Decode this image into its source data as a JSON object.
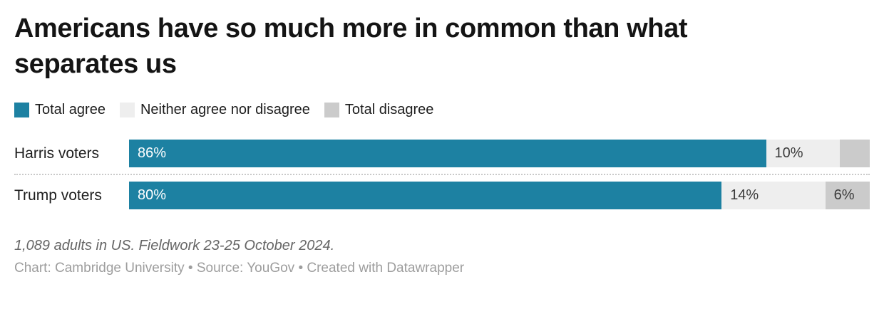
{
  "header": {
    "title_line1": "Americans have so much more in common than what",
    "title_line2": "separates us"
  },
  "legend": {
    "items": [
      {
        "label": "Total agree",
        "color": "#1d81a2"
      },
      {
        "label": "Neither agree nor disagree",
        "color": "#eeeeee"
      },
      {
        "label": "Total disagree",
        "color": "#cbcbcb"
      }
    ]
  },
  "chart_data": {
    "type": "bar",
    "variant": "stacked-horizontal",
    "title": "Americans have so much more in common than what separates us",
    "unit": "%",
    "xlim": [
      0,
      100
    ],
    "grid": false,
    "legend_position": "top",
    "categories": [
      "Harris voters",
      "Trump voters"
    ],
    "series": [
      {
        "name": "Total agree",
        "color": "#1d81a2",
        "label_color": "#ffffff",
        "values": [
          86,
          80
        ],
        "labels": [
          "86%",
          "80%"
        ]
      },
      {
        "name": "Neither agree nor disagree",
        "color": "#eeeeee",
        "label_color": "#3b3b3b",
        "values": [
          10,
          14
        ],
        "labels": [
          "10%",
          "14%"
        ]
      },
      {
        "name": "Total disagree",
        "color": "#cbcbcb",
        "label_color": "#3b3b3b",
        "values": [
          4,
          6
        ],
        "labels": [
          "",
          "6%"
        ]
      }
    ]
  },
  "footer": {
    "note": "1,089 adults in US. Fieldwork 23-25 October 2024.",
    "byline": "Chart: Cambridge University • Source: YouGov • Created with Datawrapper"
  }
}
